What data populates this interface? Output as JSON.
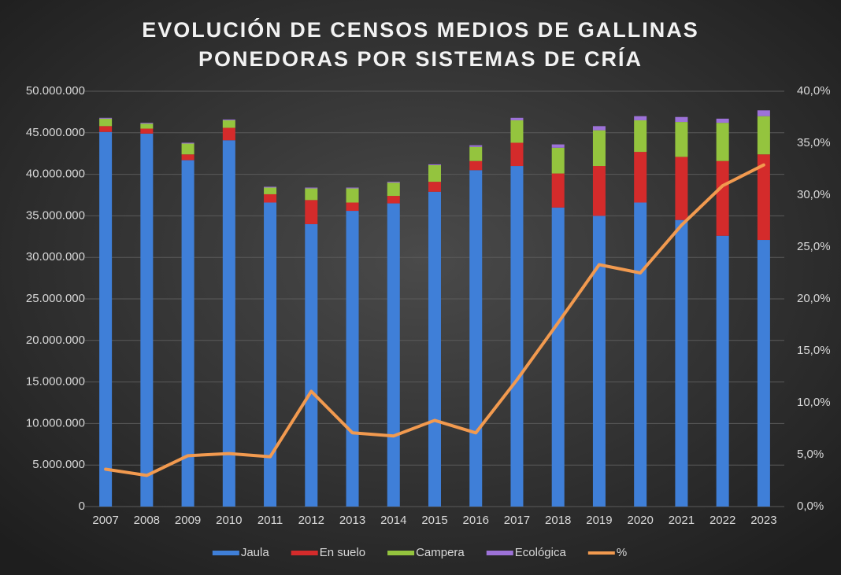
{
  "chart_data": {
    "type": "stacked_bar_line",
    "title": [
      "EVOLUCIÓN DE CENSOS MEDIOS DE GALLINAS",
      "PONEDORAS POR SISTEMAS DE CRÍA"
    ],
    "categories": [
      "2007",
      "2008",
      "2009",
      "2010",
      "2011",
      "2012",
      "2013",
      "2014",
      "2015",
      "2016",
      "2017",
      "2018",
      "2019",
      "2020",
      "2021",
      "2022",
      "2023"
    ],
    "series": [
      {
        "name": "Jaula",
        "color": "#3f7fd8",
        "values": [
          45100000,
          44900000,
          41700000,
          44100000,
          36600000,
          34000000,
          35600000,
          36500000,
          37900000,
          40500000,
          41000000,
          36000000,
          35000000,
          36600000,
          34500000,
          32600000,
          32100000
        ]
      },
      {
        "name": "En suelo",
        "color": "#d42b2b",
        "values": [
          700000,
          600000,
          700000,
          1500000,
          1000000,
          2900000,
          1000000,
          900000,
          1200000,
          1100000,
          2800000,
          4100000,
          6000000,
          6100000,
          7600000,
          9000000,
          10300000
        ]
      },
      {
        "name": "Campera",
        "color": "#94c43e",
        "values": [
          900000,
          600000,
          1300000,
          900000,
          800000,
          1400000,
          1700000,
          1600000,
          2000000,
          1700000,
          2700000,
          3100000,
          4300000,
          3800000,
          4200000,
          4600000,
          4600000
        ]
      },
      {
        "name": "Ecológica",
        "color": "#9d72d8",
        "values": [
          100000,
          100000,
          100000,
          100000,
          100000,
          100000,
          100000,
          100000,
          100000,
          200000,
          300000,
          400000,
          500000,
          500000,
          600000,
          500000,
          700000
        ]
      },
      {
        "name": "%",
        "color": "#f29a4f",
        "axis": "y2",
        "values": [
          3.6,
          3.0,
          4.9,
          5.1,
          4.8,
          11.1,
          7.1,
          6.8,
          8.3,
          7.1,
          12.2,
          17.7,
          23.3,
          22.5,
          27.1,
          30.9,
          32.9
        ]
      }
    ],
    "ylim": [
      0,
      50000000
    ],
    "yticks": [
      0,
      {
        "value": 5000000,
        "label": "5.000.000"
      },
      {
        "value": 10000000,
        "label": "10.000.000"
      },
      {
        "value": 15000000,
        "label": "15.000.000"
      },
      {
        "value": 20000000,
        "label": "20.000.000"
      },
      {
        "value": 25000000,
        "label": "25.000.000"
      },
      {
        "value": 30000000,
        "label": "30.000.000"
      },
      {
        "value": 35000000,
        "label": "35.000.000"
      },
      {
        "value": 40000000,
        "label": "40.000.000"
      },
      {
        "value": 45000000,
        "label": "45.000.000"
      },
      {
        "value": 50000000,
        "label": "50.000.000"
      }
    ],
    "y2lim": [
      0,
      40
    ],
    "y2ticks": [
      {
        "value": 0,
        "label": "0,0%"
      },
      {
        "value": 5,
        "label": "5,0%"
      },
      {
        "value": 10,
        "label": "10,0%"
      },
      {
        "value": 15,
        "label": "15,0%"
      },
      {
        "value": 20,
        "label": "20,0%"
      },
      {
        "value": 25,
        "label": "25,0%"
      },
      {
        "value": 30,
        "label": "30,0%"
      },
      {
        "value": 35,
        "label": "35,0%"
      },
      {
        "value": 40,
        "label": "40,0%"
      }
    ],
    "grid": true,
    "legend": "bottom"
  }
}
